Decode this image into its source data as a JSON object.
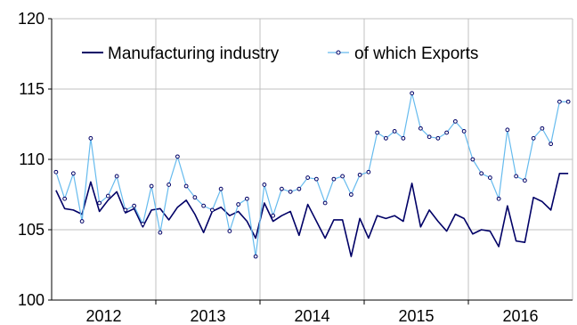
{
  "chart_data": {
    "type": "line",
    "title": "",
    "xlabel": "",
    "ylabel": "",
    "ylim": [
      100,
      120
    ],
    "yticks": [
      100,
      105,
      110,
      115,
      120
    ],
    "year_labels": [
      "2012",
      "2013",
      "2014",
      "2015",
      "2016"
    ],
    "grid": "both",
    "legend_position": "top",
    "x": [
      "2012-01",
      "2012-02",
      "2012-03",
      "2012-04",
      "2012-05",
      "2012-06",
      "2012-07",
      "2012-08",
      "2012-09",
      "2012-10",
      "2012-11",
      "2012-12",
      "2013-01",
      "2013-02",
      "2013-03",
      "2013-04",
      "2013-05",
      "2013-06",
      "2013-07",
      "2013-08",
      "2013-09",
      "2013-10",
      "2013-11",
      "2013-12",
      "2014-01",
      "2014-02",
      "2014-03",
      "2014-04",
      "2014-05",
      "2014-06",
      "2014-07",
      "2014-08",
      "2014-09",
      "2014-10",
      "2014-11",
      "2014-12",
      "2015-01",
      "2015-02",
      "2015-03",
      "2015-04",
      "2015-05",
      "2015-06",
      "2015-07",
      "2015-08",
      "2015-09",
      "2015-10",
      "2015-11",
      "2015-12",
      "2016-01",
      "2016-02",
      "2016-03",
      "2016-04",
      "2016-05",
      "2016-06",
      "2016-07",
      "2016-08",
      "2016-09",
      "2016-10",
      "2016-11",
      "2016-12"
    ],
    "series": [
      {
        "name": "Manufacturing industry",
        "color": "#000066",
        "marker": "none",
        "values": [
          107.8,
          106.5,
          106.4,
          106.1,
          108.4,
          106.3,
          107.1,
          107.7,
          106.2,
          106.5,
          105.2,
          106.4,
          106.5,
          105.7,
          106.6,
          107.1,
          106.1,
          104.8,
          106.3,
          106.6,
          106.0,
          106.3,
          105.6,
          104.4,
          106.9,
          105.6,
          106.0,
          106.3,
          104.6,
          106.8,
          105.6,
          104.4,
          105.7,
          105.7,
          103.1,
          105.8,
          104.4,
          106.0,
          105.8,
          106.0,
          105.6,
          108.3,
          105.2,
          106.4,
          105.6,
          104.9,
          106.1,
          105.8,
          104.7,
          105.0,
          104.9,
          103.8,
          106.7,
          104.2,
          104.1,
          107.3,
          107.0,
          106.4,
          109.0,
          109.0
        ]
      },
      {
        "name": "of which Exports",
        "color": "#66bbee",
        "marker": "circle",
        "values": [
          109.1,
          107.2,
          109.0,
          105.6,
          111.5,
          106.9,
          107.4,
          108.8,
          106.4,
          106.7,
          105.4,
          108.1,
          104.8,
          108.2,
          110.2,
          108.1,
          107.3,
          106.7,
          106.4,
          107.9,
          104.9,
          106.8,
          107.2,
          103.1,
          108.2,
          106.0,
          107.9,
          107.7,
          107.9,
          108.7,
          108.6,
          106.9,
          108.6,
          108.8,
          107.5,
          108.9,
          109.1,
          111.9,
          111.5,
          112.0,
          111.5,
          114.7,
          112.2,
          111.6,
          111.5,
          111.9,
          112.7,
          112.0,
          110.0,
          109.0,
          108.7,
          107.2,
          112.1,
          108.8,
          108.5,
          111.5,
          112.2,
          111.1,
          114.1,
          114.1
        ]
      }
    ]
  }
}
